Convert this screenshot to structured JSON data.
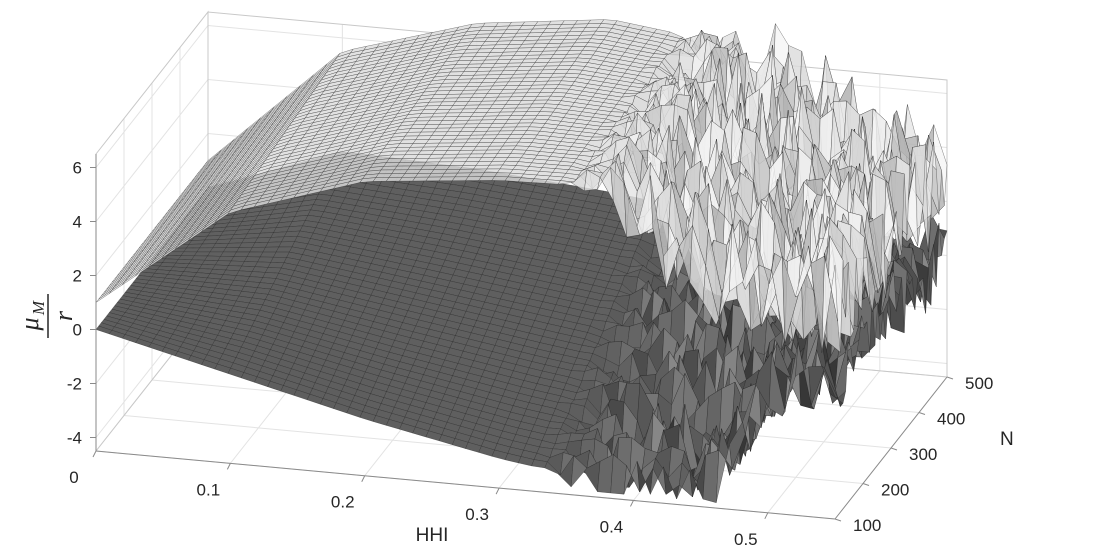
{
  "chart_data": {
    "type": "surface",
    "x": {
      "label": "HHI",
      "ticks": [
        "0",
        "0.1",
        "0.2",
        "0.3",
        "0.4",
        "0.5"
      ],
      "range": [
        0,
        0.55
      ]
    },
    "y": {
      "label": "N",
      "ticks": [
        "100",
        "200",
        "300",
        "400",
        "500"
      ],
      "range": [
        100,
        500
      ]
    },
    "z": {
      "label_num": "μ",
      "label_sub": "M",
      "label_den": "r",
      "ticks": [
        "-4",
        "-2",
        "0",
        "2",
        "4",
        "6"
      ],
      "range": [
        -4.5,
        6.5
      ]
    },
    "grid": true,
    "colormap": "gray",
    "series": [
      {
        "surface": "upper",
        "color": "#e6e6e6",
        "profile_at_N_100": [
          [
            0,
            1.0
          ],
          [
            0.1,
            4.8
          ],
          [
            0.2,
            6.4
          ],
          [
            0.3,
            6.9
          ],
          [
            0.38,
            7.0
          ],
          [
            0.42,
            5.0
          ],
          [
            0.5,
            3.5
          ],
          [
            0.55,
            3.3
          ]
        ],
        "profile_at_N_500": [
          [
            0,
            1.0
          ],
          [
            0.1,
            5.5
          ],
          [
            0.2,
            7.0
          ],
          [
            0.3,
            7.6
          ],
          [
            0.4,
            7.0
          ],
          [
            0.5,
            3.8
          ],
          [
            0.55,
            3.2
          ]
        ],
        "noisy_from_HHI": 0.35
      },
      {
        "surface": "lower",
        "color": "#3a3a3a",
        "profile_at_N_100": [
          [
            0,
            0
          ],
          [
            0.1,
            -1.2
          ],
          [
            0.2,
            -2.4
          ],
          [
            0.3,
            -3.4
          ],
          [
            0.4,
            -4.1
          ],
          [
            0.45,
            -4.3
          ],
          [
            0.5,
            0.0
          ],
          [
            0.55,
            0.9
          ]
        ],
        "profile_at_N_500": [
          [
            0,
            0
          ],
          [
            0.1,
            1.8
          ],
          [
            0.2,
            1.6
          ],
          [
            0.3,
            1.2
          ],
          [
            0.4,
            0.6
          ],
          [
            0.5,
            0.2
          ],
          [
            0.55,
            0.1
          ]
        ],
        "noisy_from_HHI": 0.33
      }
    ]
  }
}
